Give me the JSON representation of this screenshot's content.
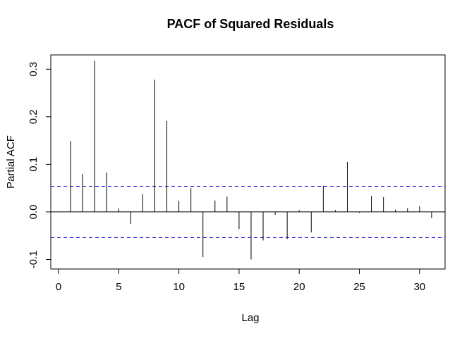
{
  "chart_data": {
    "type": "bar",
    "title": "PACF of Squared Residuals",
    "xlabel": "Lag",
    "ylabel": "Partial ACF",
    "xlim": [
      0,
      32
    ],
    "ylim": [
      -0.12,
      0.33
    ],
    "x_ticks": [
      0,
      5,
      10,
      15,
      20,
      25,
      30
    ],
    "y_ticks": [
      -0.1,
      0.0,
      0.1,
      0.2,
      0.3
    ],
    "x_tick_labels": [
      "0",
      "5",
      "10",
      "15",
      "20",
      "25",
      "30"
    ],
    "y_tick_labels": [
      "-0.1",
      "0.0",
      "0.1",
      "0.2",
      "0.3"
    ],
    "confidence_bounds": [
      0.054,
      -0.054
    ],
    "confidence_line_color": "#0000cc",
    "zero_line_color": "#000000",
    "bar_color": "#000000",
    "grid": false,
    "series": [
      {
        "lags": [
          1,
          2,
          3,
          4,
          5,
          6,
          7,
          8,
          9,
          10,
          11,
          12,
          13,
          14,
          15,
          16,
          17,
          18,
          19,
          20,
          21,
          22,
          23,
          24,
          25,
          26,
          27,
          28,
          29,
          30,
          31
        ],
        "values": [
          0.149,
          0.08,
          0.318,
          0.083,
          0.007,
          -0.025,
          0.037,
          0.278,
          0.191,
          0.023,
          0.05,
          -0.095,
          0.024,
          0.032,
          -0.036,
          -0.1,
          -0.06,
          -0.006,
          -0.057,
          0.004,
          -0.043,
          0.055,
          0.004,
          0.105,
          -0.002,
          0.034,
          0.031,
          0.005,
          0.008,
          0.012,
          -0.013
        ]
      }
    ]
  }
}
